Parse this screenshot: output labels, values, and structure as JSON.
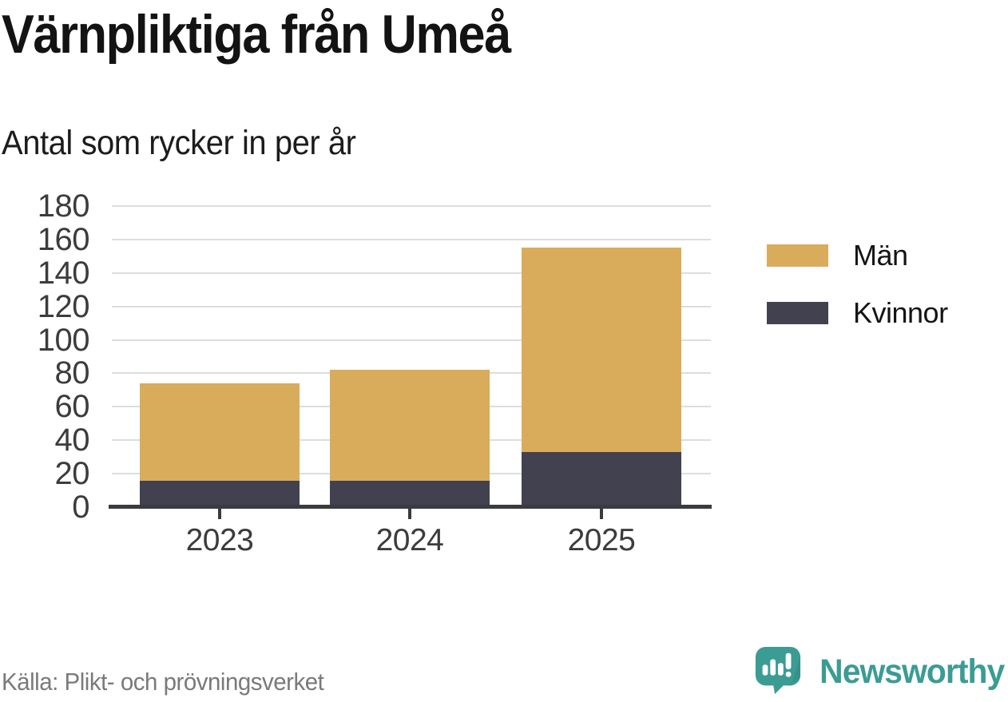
{
  "header": {
    "title": "Värnpliktiga från Umeå",
    "subtitle": "Antal som rycker in per år"
  },
  "chart_data": {
    "type": "bar",
    "stacked": true,
    "title": "Värnpliktiga från Umeå",
    "subtitle": "Antal som rycker in per år",
    "categories": [
      "2023",
      "2024",
      "2025"
    ],
    "series": [
      {
        "name": "Kvinnor",
        "color": "#42414f",
        "values": [
          16,
          16,
          33
        ]
      },
      {
        "name": "Män",
        "color": "#d9ac5b",
        "values": [
          58,
          66,
          122
        ]
      }
    ],
    "totals": [
      74,
      82,
      155
    ],
    "xlabel": "",
    "ylabel": "",
    "ylim": [
      0,
      180
    ],
    "ytick_step": 20,
    "grid": true,
    "gridline_color": "#dddddd",
    "axis_color": "#3a3a41",
    "legend_position": "right"
  },
  "legend": {
    "items": [
      {
        "label": "Män",
        "color": "#d9ac5b"
      },
      {
        "label": "Kvinnor",
        "color": "#42414f"
      }
    ]
  },
  "footer": {
    "source": "Källa: Plikt- och prövningsverket",
    "brand": "Newsworthy"
  },
  "colors": {
    "men": "#d9ac5b",
    "women": "#42414f",
    "teal_brand": "#3b9c94",
    "background": "#ffffff"
  }
}
